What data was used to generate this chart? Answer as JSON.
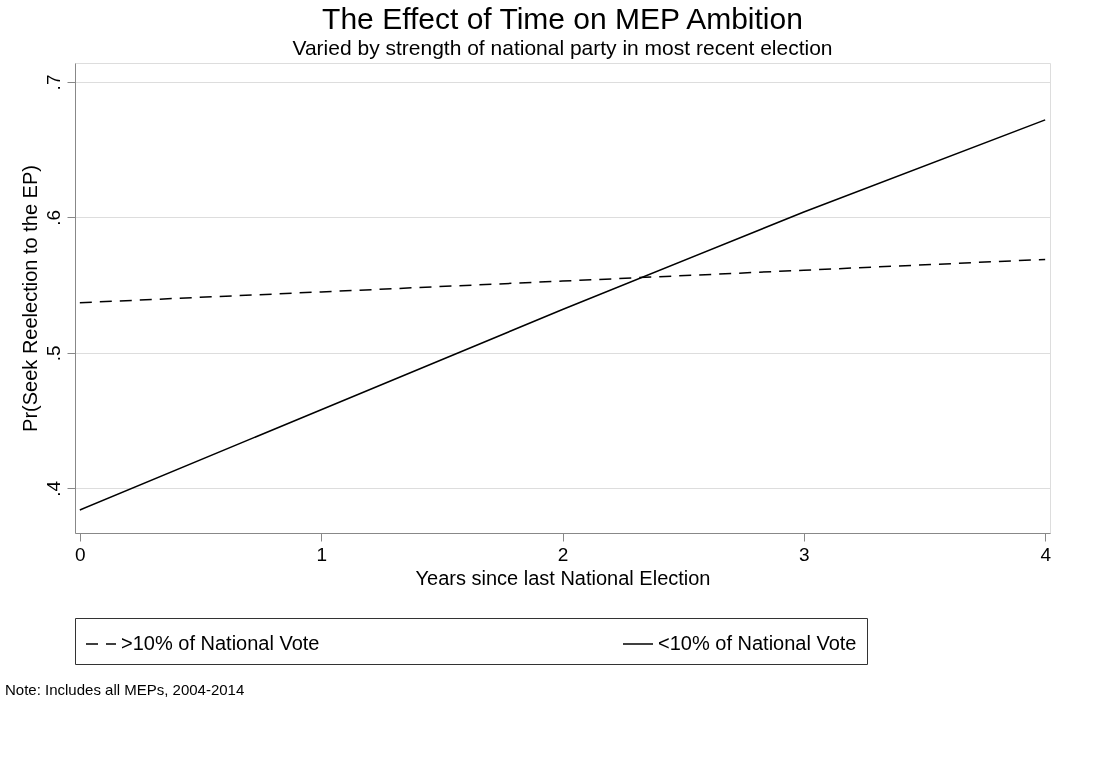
{
  "chart_data": {
    "type": "line",
    "title": "The Effect of Time on MEP Ambition",
    "subtitle": "Varied by strength of national party in most recent election",
    "xlabel": "Years since last National Election",
    "ylabel": "Pr(Seek Reelection to the EP)",
    "x": [
      0,
      1,
      2,
      3,
      4
    ],
    "series": [
      {
        "name": ">10% of National Vote",
        "color": "#000000",
        "line_style": "dashed",
        "values": [
          0.537,
          0.545,
          0.553,
          0.561,
          0.569
        ]
      },
      {
        "name": "<10% of National Vote",
        "color": "#000000",
        "line_style": "solid",
        "values": [
          0.384,
          0.458,
          0.532,
          0.604,
          0.672
        ]
      }
    ],
    "xlim": [
      -0.02,
      4.02
    ],
    "xticks": [
      0,
      1,
      2,
      3,
      4
    ],
    "ylim": [
      0.367,
      0.714
    ],
    "yticks": [
      {
        "value": 0.4,
        "label": ".4"
      },
      {
        "value": 0.5,
        "label": ".5"
      },
      {
        "value": 0.6,
        "label": ".6"
      },
      {
        "value": 0.7,
        "label": ".7"
      }
    ],
    "grid": "y",
    "legend": "bottom",
    "marker": "none",
    "annotations": [
      "Note: Includes all MEPs, 2004-2014"
    ]
  }
}
